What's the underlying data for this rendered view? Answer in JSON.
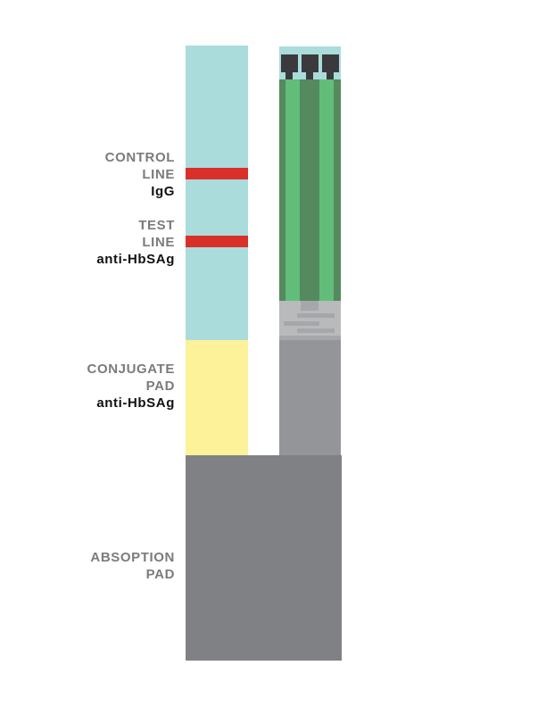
{
  "labels": {
    "control": {
      "line1": "CONTROL",
      "line2": "LINE",
      "antibody": "IgG"
    },
    "test": {
      "line1": "TEST",
      "line2": "LINE",
      "antibody": "anti-HbSAg"
    },
    "conjugate": {
      "line1": "CONJUGATE",
      "line2": "PAD",
      "antibody": "anti-HbSAg"
    },
    "absorption": {
      "line1": "ABSOPTION",
      "line2": "PAD"
    }
  },
  "colors": {
    "membrane": "#abdcdc",
    "line_red": "#d9302a",
    "conjugate_pad": "#fdf19a",
    "absorption_pad": "#808184",
    "side_pad": "#949598",
    "green_light": "#62bd7a",
    "green_dark": "#548a5d",
    "connector_dark": "#3a3a3c",
    "text_gray": "#7a7b7e",
    "text_black": "#111111"
  }
}
